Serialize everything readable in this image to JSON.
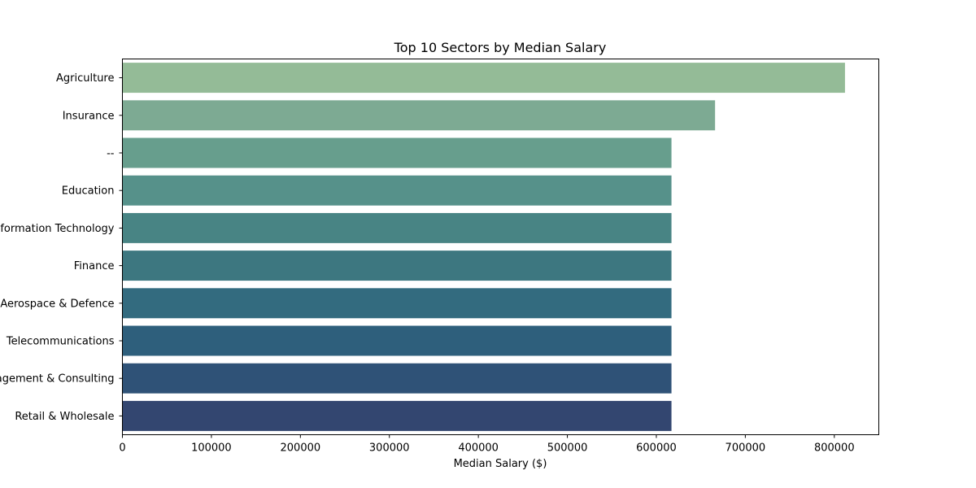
{
  "chart_data": {
    "type": "bar",
    "orientation": "horizontal",
    "title": "Top 10 Sectors by Median Salary",
    "xlabel": "Median Salary ($)",
    "ylabel": "",
    "xlim": [
      0,
      850000
    ],
    "xticks": [
      0,
      100000,
      200000,
      300000,
      400000,
      500000,
      600000,
      700000,
      800000
    ],
    "grid": false,
    "categories": [
      "Agriculture",
      "Insurance",
      "--",
      "Education",
      "Information Technology",
      "Finance",
      "Aerospace & Defence",
      "Telecommunications",
      "Management & Consulting",
      "Retail & Wholesale"
    ],
    "values": [
      812000,
      666000,
      617000,
      617000,
      617000,
      617000,
      617000,
      617000,
      617000,
      617000
    ],
    "colors": [
      "#94bb97",
      "#7daa93",
      "#679e8d",
      "#56918a",
      "#488484",
      "#3d7780",
      "#336b7f",
      "#2e5f7c",
      "#2f5277",
      "#334670"
    ]
  }
}
